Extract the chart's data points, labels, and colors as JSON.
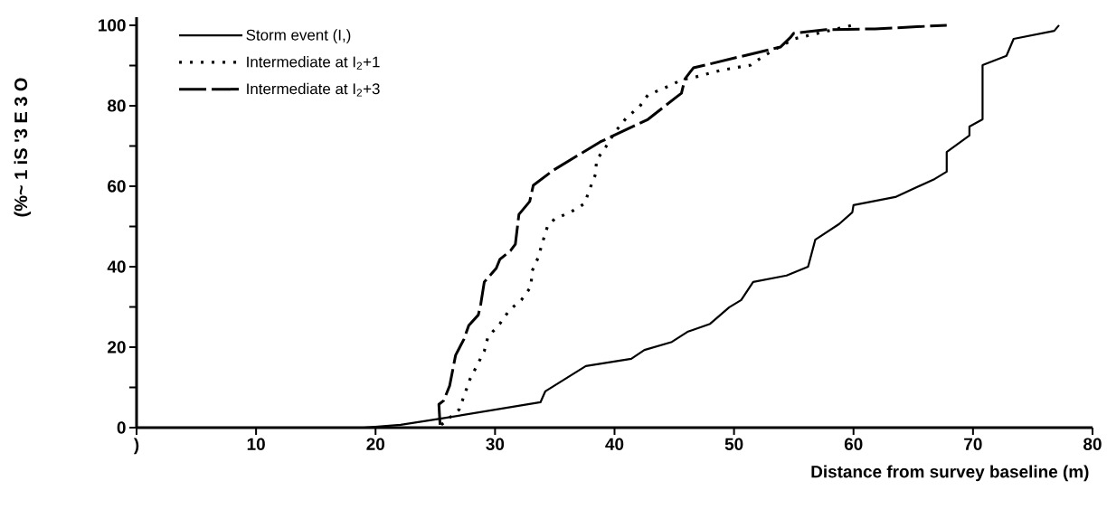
{
  "chart_data": {
    "type": "line",
    "ylabel": "(%~ 1 iS '3 E 3 O",
    "xlabel": "Distance from survey baseline (m)",
    "xlim": [
      0,
      80
    ],
    "ylim": [
      0,
      102
    ],
    "xticks": [
      {
        "value": 0,
        "label": ")"
      },
      10,
      20,
      30,
      40,
      50,
      60,
      70,
      80
    ],
    "yticks": [
      0,
      {
        "value": 10,
        "label": null
      },
      20,
      {
        "value": 30,
        "label": null
      },
      40,
      {
        "value": 50,
        "label": null
      },
      60,
      {
        "value": 70,
        "label": null
      },
      80,
      {
        "value": 90,
        "label": null
      },
      100
    ],
    "legend": "top left",
    "marker": "none",
    "grid": false,
    "series": [
      {
        "name": "Storm event (I,)",
        "color": "#000000",
        "line_style": "solid",
        "x": [
          19,
          22.1,
          25.4,
          33.8,
          34.2,
          37.6,
          41.4,
          42.5,
          44.8,
          46.1,
          48,
          49.6,
          50.6,
          51.6,
          54.4,
          56.2,
          56.8,
          58.8,
          59.9,
          60,
          63.5,
          66.8,
          67.8,
          67.8,
          69.7,
          69.7,
          70.8,
          70.8,
          72.8,
          73.4,
          76.8,
          77.2
        ],
        "values": [
          0,
          0.7,
          2.2,
          6.3,
          9,
          15.3,
          17.1,
          19.3,
          21.3,
          23.8,
          25.8,
          29.9,
          31.7,
          36.2,
          37.8,
          40,
          46.7,
          50.6,
          53.5,
          55.3,
          57.3,
          61.8,
          63.6,
          68.5,
          72.6,
          74.8,
          76.6,
          90.1,
          92.4,
          96.6,
          98.6,
          100
        ]
      },
      {
        "name": "Intermediate at I$_{2}$+1",
        "color": "#000000",
        "line_style": "dotted",
        "x": [
          25.5,
          27,
          27.9,
          29.1,
          29.4,
          30.4,
          31.2,
          32.2,
          33,
          33.1,
          33.6,
          34,
          34.4,
          35,
          36.3,
          37.5,
          37.9,
          38.4,
          38.5,
          39.3,
          40,
          41,
          42.1,
          42.8,
          44.1,
          45.7,
          46.6,
          48.9,
          51.4,
          52.5,
          55,
          59.9
        ],
        "values": [
          0.7,
          4.5,
          12,
          19,
          22.5,
          25.8,
          29.2,
          31.7,
          35,
          38.9,
          42.2,
          46.3,
          50.1,
          51.9,
          53.5,
          55.7,
          59.1,
          62.9,
          66.5,
          69.9,
          73.3,
          77,
          79.8,
          82.7,
          84.3,
          86.5,
          87,
          88.8,
          90.1,
          92.4,
          96.6,
          100
        ]
      },
      {
        "name": "Intermediate at I$_{2}$+3",
        "color": "#000000",
        "line_style": "dashed",
        "x": [
          25.4,
          25.3,
          25.7,
          26.2,
          26.7,
          27.4,
          27.8,
          28.6,
          28.8,
          29.1,
          30.1,
          30.4,
          31.3,
          31.7,
          32,
          32.9,
          33.2,
          34.9,
          38.8,
          42.8,
          45.2,
          45.6,
          45.9,
          46.6,
          53.9,
          54.7,
          55,
          57.7,
          61.8,
          67.8
        ],
        "values": [
          0.7,
          5.8,
          6.7,
          10.4,
          18,
          22,
          25.4,
          28,
          30.6,
          36.2,
          39.6,
          41.8,
          44,
          45.6,
          53,
          56.2,
          60.2,
          64,
          71,
          76.6,
          82.2,
          83.1,
          86.7,
          89.4,
          94.6,
          96.9,
          98,
          98.9,
          99.1,
          100
        ]
      }
    ]
  }
}
